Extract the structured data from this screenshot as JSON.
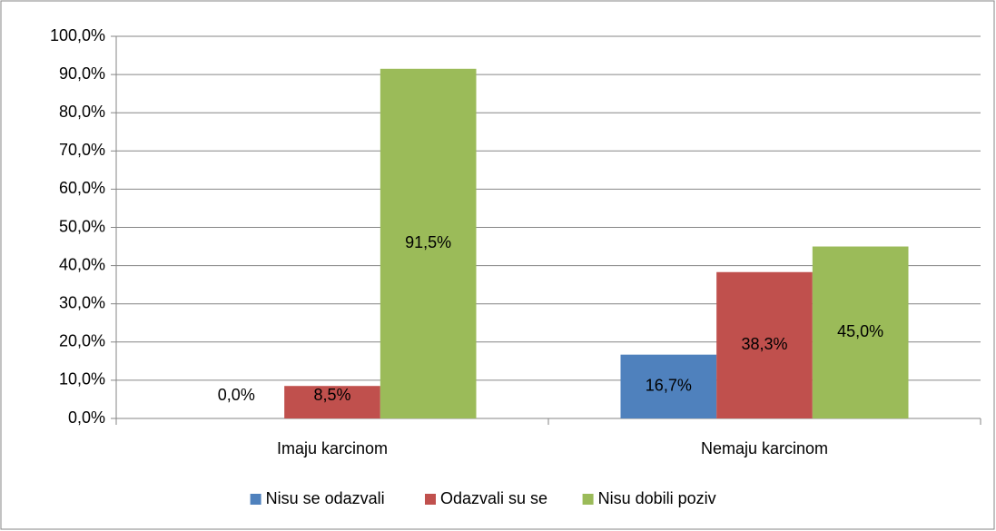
{
  "chart_data": {
    "type": "bar",
    "categories": [
      "Imaju karcinom",
      "Nemaju karcinom"
    ],
    "series": [
      {
        "name": "Nisu se odazvali",
        "color": "#4f81bd",
        "values": [
          0,
          16.7
        ],
        "value_labels": [
          "0,0%",
          "16,7%"
        ]
      },
      {
        "name": "Odazvali su se",
        "color": "#c0504d",
        "values": [
          8.5,
          38.3
        ],
        "value_labels": [
          "8,5%",
          "38,3%"
        ]
      },
      {
        "name": "Nisu dobili poziv",
        "color": "#9bbb59",
        "values": [
          91.5,
          45.0
        ],
        "value_labels": [
          "91,5%",
          "45,0%"
        ]
      }
    ],
    "ylim": [
      0,
      100
    ],
    "yticks": [
      {
        "value": 0,
        "label": "0,0%"
      },
      {
        "value": 10,
        "label": "10,0%"
      },
      {
        "value": 20,
        "label": "20,0%"
      },
      {
        "value": 30,
        "label": "30,0%"
      },
      {
        "value": 40,
        "label": "40,0%"
      },
      {
        "value": 50,
        "label": "50,0%"
      },
      {
        "value": 60,
        "label": "60,0%"
      },
      {
        "value": 70,
        "label": "70,0%"
      },
      {
        "value": 80,
        "label": "80,0%"
      },
      {
        "value": 90,
        "label": "90,0%"
      },
      {
        "value": 100,
        "label": "100,0%"
      }
    ],
    "grid": true,
    "legend": "bottom"
  }
}
